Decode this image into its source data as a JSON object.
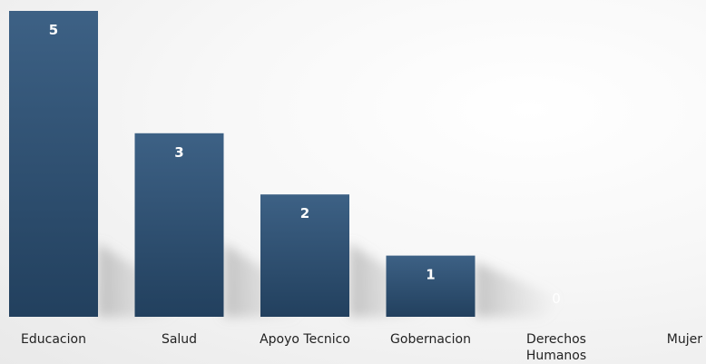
{
  "chart_data": {
    "type": "bar",
    "categories": [
      [
        "Educacion"
      ],
      [
        "Salud"
      ],
      [
        "Apoyo Tecnico"
      ],
      [
        "Gobernacion"
      ],
      [
        "Derechos",
        "Humanos"
      ],
      [
        "Mujer"
      ]
    ],
    "values": [
      5,
      3,
      2,
      1,
      0,
      0
    ],
    "data_labels": [
      "5",
      "3",
      "2",
      "1",
      "0",
      ""
    ],
    "title": "",
    "xlabel": "",
    "ylabel": "",
    "ylim": [
      0,
      5
    ],
    "grid": false,
    "legend": "none",
    "colors": {
      "bar_top": "#3d6185",
      "bar_bottom": "#22405e",
      "label": "#ffffff",
      "category_text": "#222222"
    }
  }
}
